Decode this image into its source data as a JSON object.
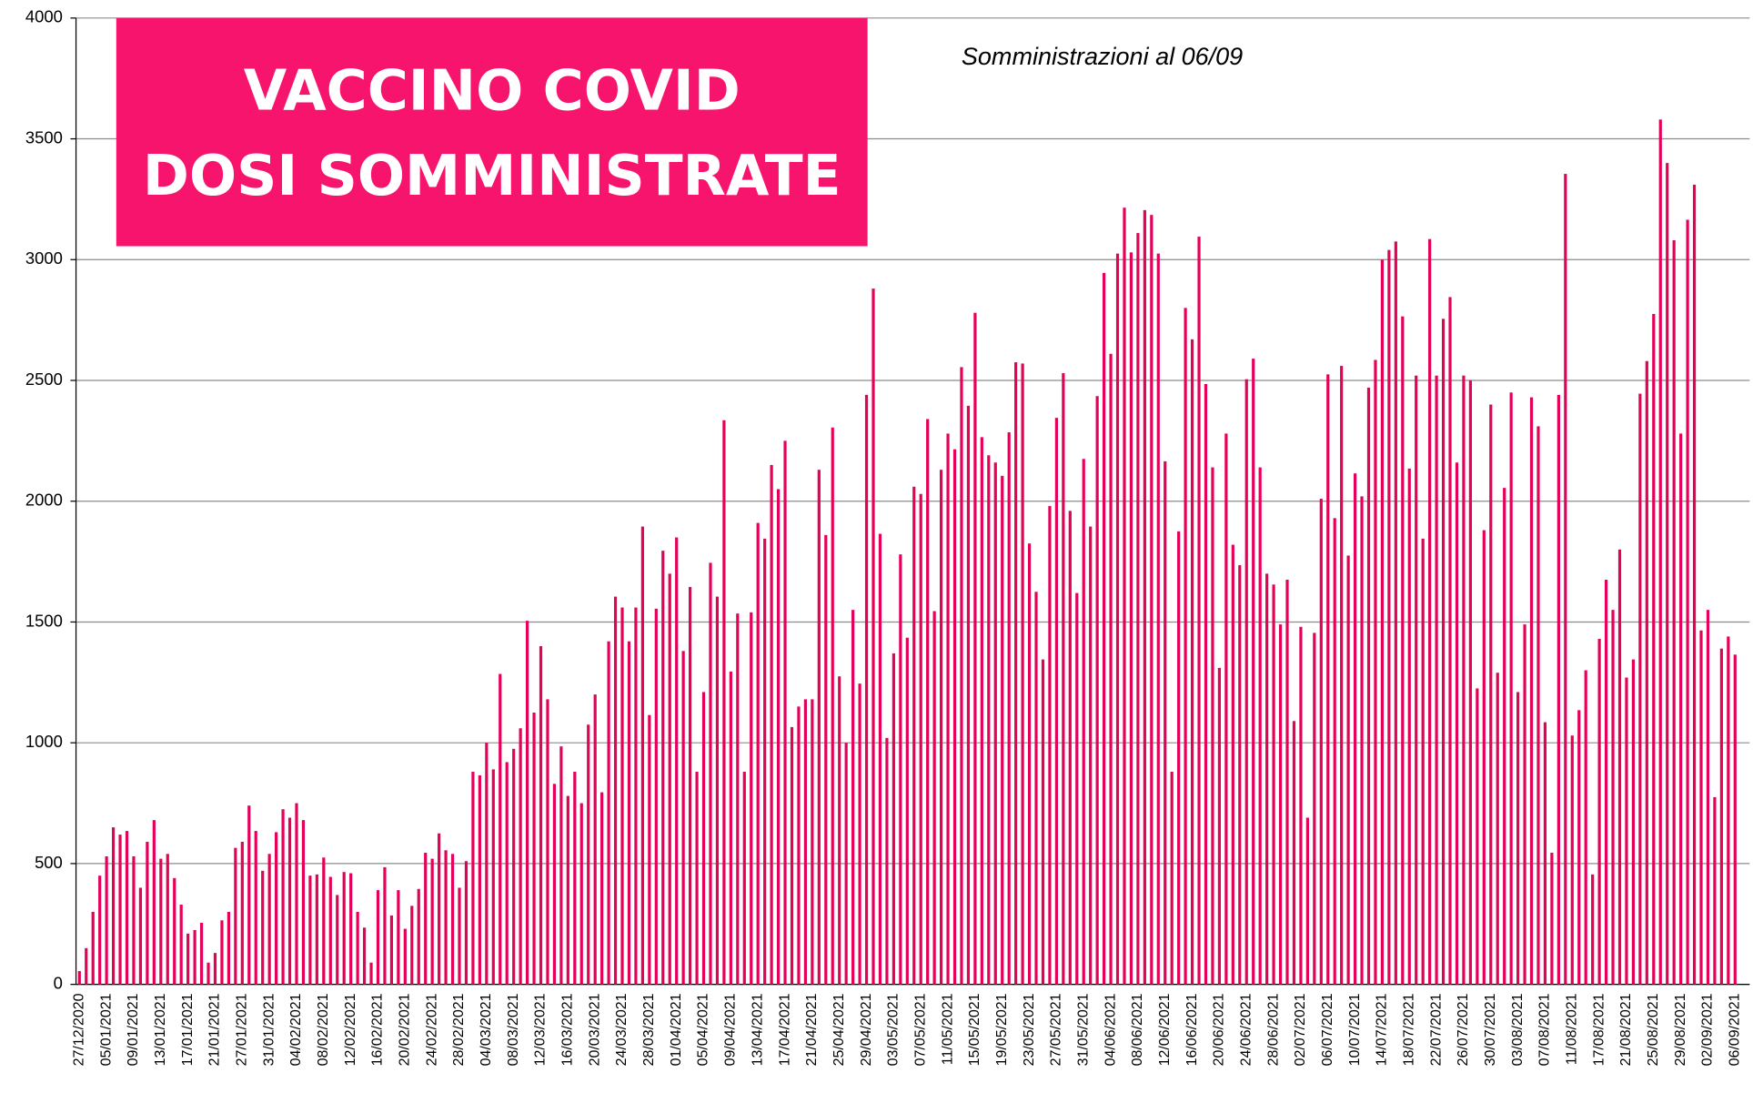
{
  "chart_data": {
    "type": "bar",
    "title": [
      "VACCINO COVID",
      "DOSI SOMMINISTRATE"
    ],
    "subtitle": "Somministrazioni al 06/09",
    "color": "#e5005a",
    "title_color": "#f7146c",
    "ylim": [
      0,
      4000
    ],
    "yticks": [
      0,
      500,
      1000,
      1500,
      2000,
      2500,
      3000,
      3500,
      4000
    ],
    "grid": true,
    "categories": [
      "27/12/2020",
      null,
      null,
      null,
      "05/01/2021",
      null,
      null,
      null,
      "09/01/2021",
      null,
      null,
      null,
      "13/01/2021",
      null,
      null,
      null,
      "17/01/2021",
      null,
      null,
      null,
      "21/01/2021",
      null,
      null,
      null,
      "27/01/2021",
      null,
      null,
      null,
      "31/01/2021",
      null,
      null,
      null,
      "04/02/2021",
      null,
      null,
      null,
      "08/02/2021",
      null,
      null,
      null,
      "12/02/2021",
      null,
      null,
      null,
      "16/02/2021",
      null,
      null,
      null,
      "20/02/2021",
      null,
      null,
      null,
      "24/02/2021",
      null,
      null,
      null,
      "28/02/2021",
      null,
      null,
      null,
      "04/03/2021",
      null,
      null,
      null,
      "08/03/2021",
      null,
      null,
      null,
      "12/03/2021",
      null,
      null,
      null,
      "16/03/2021",
      null,
      null,
      null,
      "20/03/2021",
      null,
      null,
      null,
      "24/03/2021",
      null,
      null,
      null,
      "28/03/2021",
      null,
      null,
      null,
      "01/04/2021",
      null,
      null,
      null,
      "05/04/2021",
      null,
      null,
      null,
      "09/04/2021",
      null,
      null,
      null,
      "13/04/2021",
      null,
      null,
      null,
      "17/04/2021",
      null,
      null,
      null,
      "21/04/2021",
      null,
      null,
      null,
      "25/04/2021",
      null,
      null,
      null,
      "29/04/2021",
      null,
      null,
      null,
      "03/05/2021",
      null,
      null,
      null,
      "07/05/2021",
      null,
      null,
      null,
      "11/05/2021",
      null,
      null,
      null,
      "15/05/2021",
      null,
      null,
      null,
      "19/05/2021",
      null,
      null,
      null,
      "23/05/2021",
      null,
      null,
      null,
      "27/05/2021",
      null,
      null,
      null,
      "31/05/2021",
      null,
      null,
      null,
      "04/06/2021",
      null,
      null,
      null,
      "08/06/2021",
      null,
      null,
      null,
      "12/06/2021",
      null,
      null,
      null,
      "16/06/2021",
      null,
      null,
      null,
      "20/06/2021",
      null,
      null,
      null,
      "24/06/2021",
      null,
      null,
      null,
      "28/06/2021",
      null,
      null,
      null,
      "02/07/2021",
      null,
      null,
      null,
      "06/07/2021",
      null,
      null,
      null,
      "10/07/2021",
      null,
      null,
      null,
      "14/07/2021",
      null,
      null,
      null,
      "18/07/2021",
      null,
      null,
      null,
      "22/07/2021",
      null,
      null,
      null,
      "26/07/2021",
      null,
      null,
      null,
      "30/07/2021",
      null,
      null,
      null,
      "03/08/2021",
      null,
      null,
      null,
      "07/08/2021",
      null,
      null,
      null,
      "11/08/2021",
      null,
      null,
      null,
      "17/08/2021",
      null,
      null,
      null,
      "21/08/2021",
      null,
      null,
      null,
      "25/08/2021",
      null,
      null,
      null,
      "29/08/2021",
      null,
      null,
      null,
      "02/09/2021",
      null,
      null,
      null,
      "06/09/2021"
    ],
    "values": [
      55,
      150,
      300,
      450,
      530,
      650,
      620,
      635,
      530,
      400,
      590,
      680,
      520,
      540,
      440,
      330,
      210,
      225,
      255,
      90,
      130,
      265,
      300,
      565,
      590,
      740,
      635,
      470,
      540,
      630,
      725,
      690,
      750,
      680,
      450,
      455,
      525,
      445,
      370,
      465,
      460,
      300,
      235,
      90,
      390,
      485,
      285,
      390,
      230,
      325,
      395,
      545,
      520,
      625,
      555,
      540,
      400,
      510,
      880,
      865,
      1000,
      890,
      1285,
      920,
      975,
      1060,
      1505,
      1125,
      1400,
      1180,
      830,
      985,
      780,
      880,
      750,
      1075,
      1200,
      795,
      1420,
      1605,
      1560,
      1420,
      1560,
      1895,
      1115,
      1555,
      1795,
      1700,
      1850,
      1380,
      1645,
      880,
      1210,
      1745,
      1605,
      2335,
      1295,
      1535,
      880,
      1540,
      1910,
      1845,
      2150,
      2050,
      2250,
      1065,
      1150,
      1180,
      1180,
      2130,
      1860,
      2305,
      1275,
      1000,
      1550,
      1245,
      2440,
      2880,
      1865,
      1020,
      1370,
      1780,
      1435,
      2060,
      2030,
      2340,
      1545,
      2130,
      2280,
      2215,
      2555,
      2395,
      2780,
      2265,
      2190,
      2160,
      2105,
      2285,
      2575,
      2570,
      1825,
      1625,
      1345,
      1980,
      2345,
      2530,
      1960,
      1620,
      2175,
      1895,
      2435,
      2945,
      2610,
      3025,
      3215,
      3030,
      3110,
      3205,
      3185,
      3025,
      2165,
      880,
      1875,
      2800,
      2670,
      3095,
      2485,
      2140,
      1310,
      2280,
      1820,
      1735,
      2505,
      2590,
      2140,
      1700,
      1655,
      1490,
      1675,
      1090,
      1480,
      690,
      1455,
      2010,
      2525,
      1930,
      2560,
      1775,
      2115,
      2020,
      2470,
      2585,
      3000,
      3040,
      3075,
      2765,
      2135,
      2520,
      1845,
      3085,
      2520,
      2755,
      2845,
      2160,
      2520,
      2500,
      1225,
      1880,
      2400,
      1290,
      2055,
      2450,
      1210,
      1490,
      2430,
      2310,
      1085,
      545,
      2440,
      3355,
      1030,
      1135,
      1300,
      455,
      1430,
      1675,
      1550,
      1800,
      1270,
      1345,
      2445,
      2580,
      2775,
      3580,
      3400,
      3080,
      2280,
      3165,
      3310,
      1465,
      1550,
      775,
      1390,
      1440,
      1365
    ]
  }
}
